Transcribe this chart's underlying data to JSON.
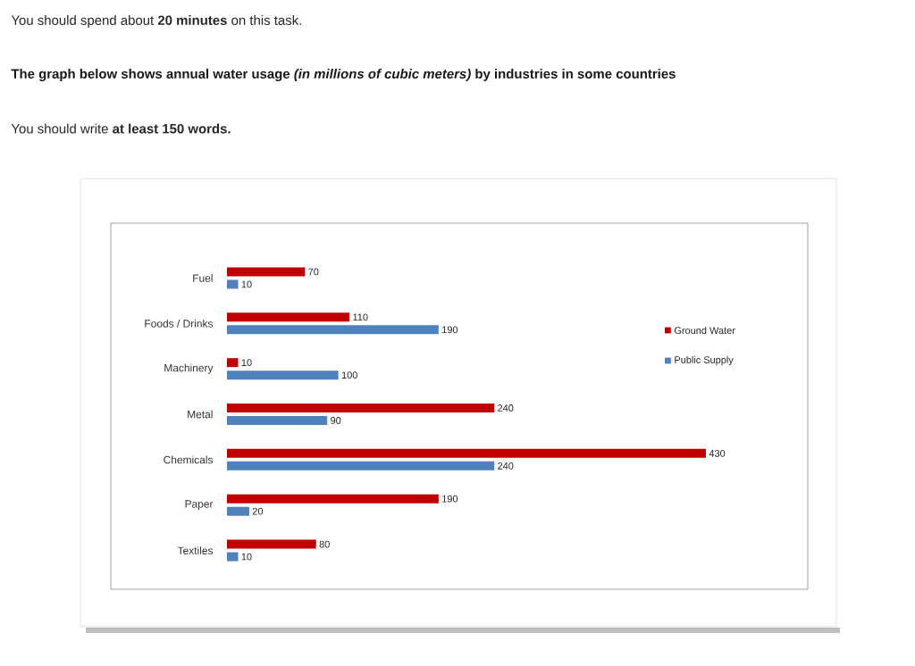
{
  "chart_data": {
    "type": "bar",
    "orientation": "horizontal",
    "title": "The graph below shows annual water usage *(in millions of cubic meters)* by industries in some countries",
    "annotations": [
      "You should spend about **20 minutes** on this task.",
      "You should write **at least 150 words.**"
    ],
    "categories": [
      "Fuel",
      "Foods / Drinks",
      "Machinery",
      "Metal",
      "Chemicals",
      "Paper",
      "Textiles"
    ],
    "series": [
      {
        "name": "Ground Water",
        "color": "#c00000",
        "values": [
          70,
          110,
          10,
          240,
          430,
          190,
          80
        ]
      },
      {
        "name": "Public Supply",
        "color": "#4f81bd",
        "values": [
          10,
          190,
          100,
          90,
          240,
          20,
          10
        ]
      }
    ],
    "data_labels": true,
    "legend": "right"
  }
}
